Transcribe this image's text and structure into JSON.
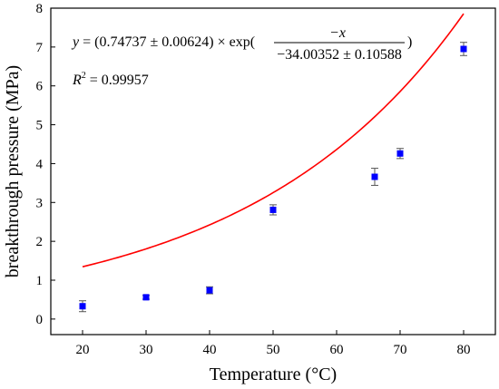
{
  "chart_data": {
    "type": "scatter",
    "xlabel": "Temperature (°C)",
    "ylabel": "breakthrough pressure (MPa)",
    "xlim": [
      15,
      85
    ],
    "ylim": [
      -0.4,
      8
    ],
    "x_ticks": [
      20,
      30,
      40,
      50,
      60,
      70,
      80
    ],
    "y_ticks": [
      0,
      1,
      2,
      3,
      4,
      5,
      6,
      7,
      8
    ],
    "grid": false,
    "series": [
      {
        "kind": "scatter-with-error-bars",
        "color": "#0000ff",
        "points": [
          {
            "x": 20,
            "y": 0.33,
            "err": 0.14
          },
          {
            "x": 30,
            "y": 0.56,
            "err": 0.05
          },
          {
            "x": 40,
            "y": 0.74,
            "err": 0.09
          },
          {
            "x": 50,
            "y": 2.81,
            "err": 0.13
          },
          {
            "x": 66,
            "y": 3.66,
            "err": 0.22
          },
          {
            "x": 70,
            "y": 4.26,
            "err": 0.13
          },
          {
            "x": 80,
            "y": 6.95,
            "err": 0.17
          }
        ]
      },
      {
        "kind": "fit-curve",
        "color": "#ff0000",
        "model": "exp",
        "a": 0.74737,
        "t": 34.00352,
        "x_range": [
          20,
          80
        ]
      }
    ],
    "annotations": {
      "eq_y": "y",
      "eq_open": " = (0.74737 ± 0.00624) × exp(",
      "eq_num": "−x",
      "eq_den": "−34.00352 ± 0.10588",
      "eq_close": ")",
      "r2_r": "R",
      "r2_sup": "2",
      "r2_val": " = 0.99957"
    }
  }
}
